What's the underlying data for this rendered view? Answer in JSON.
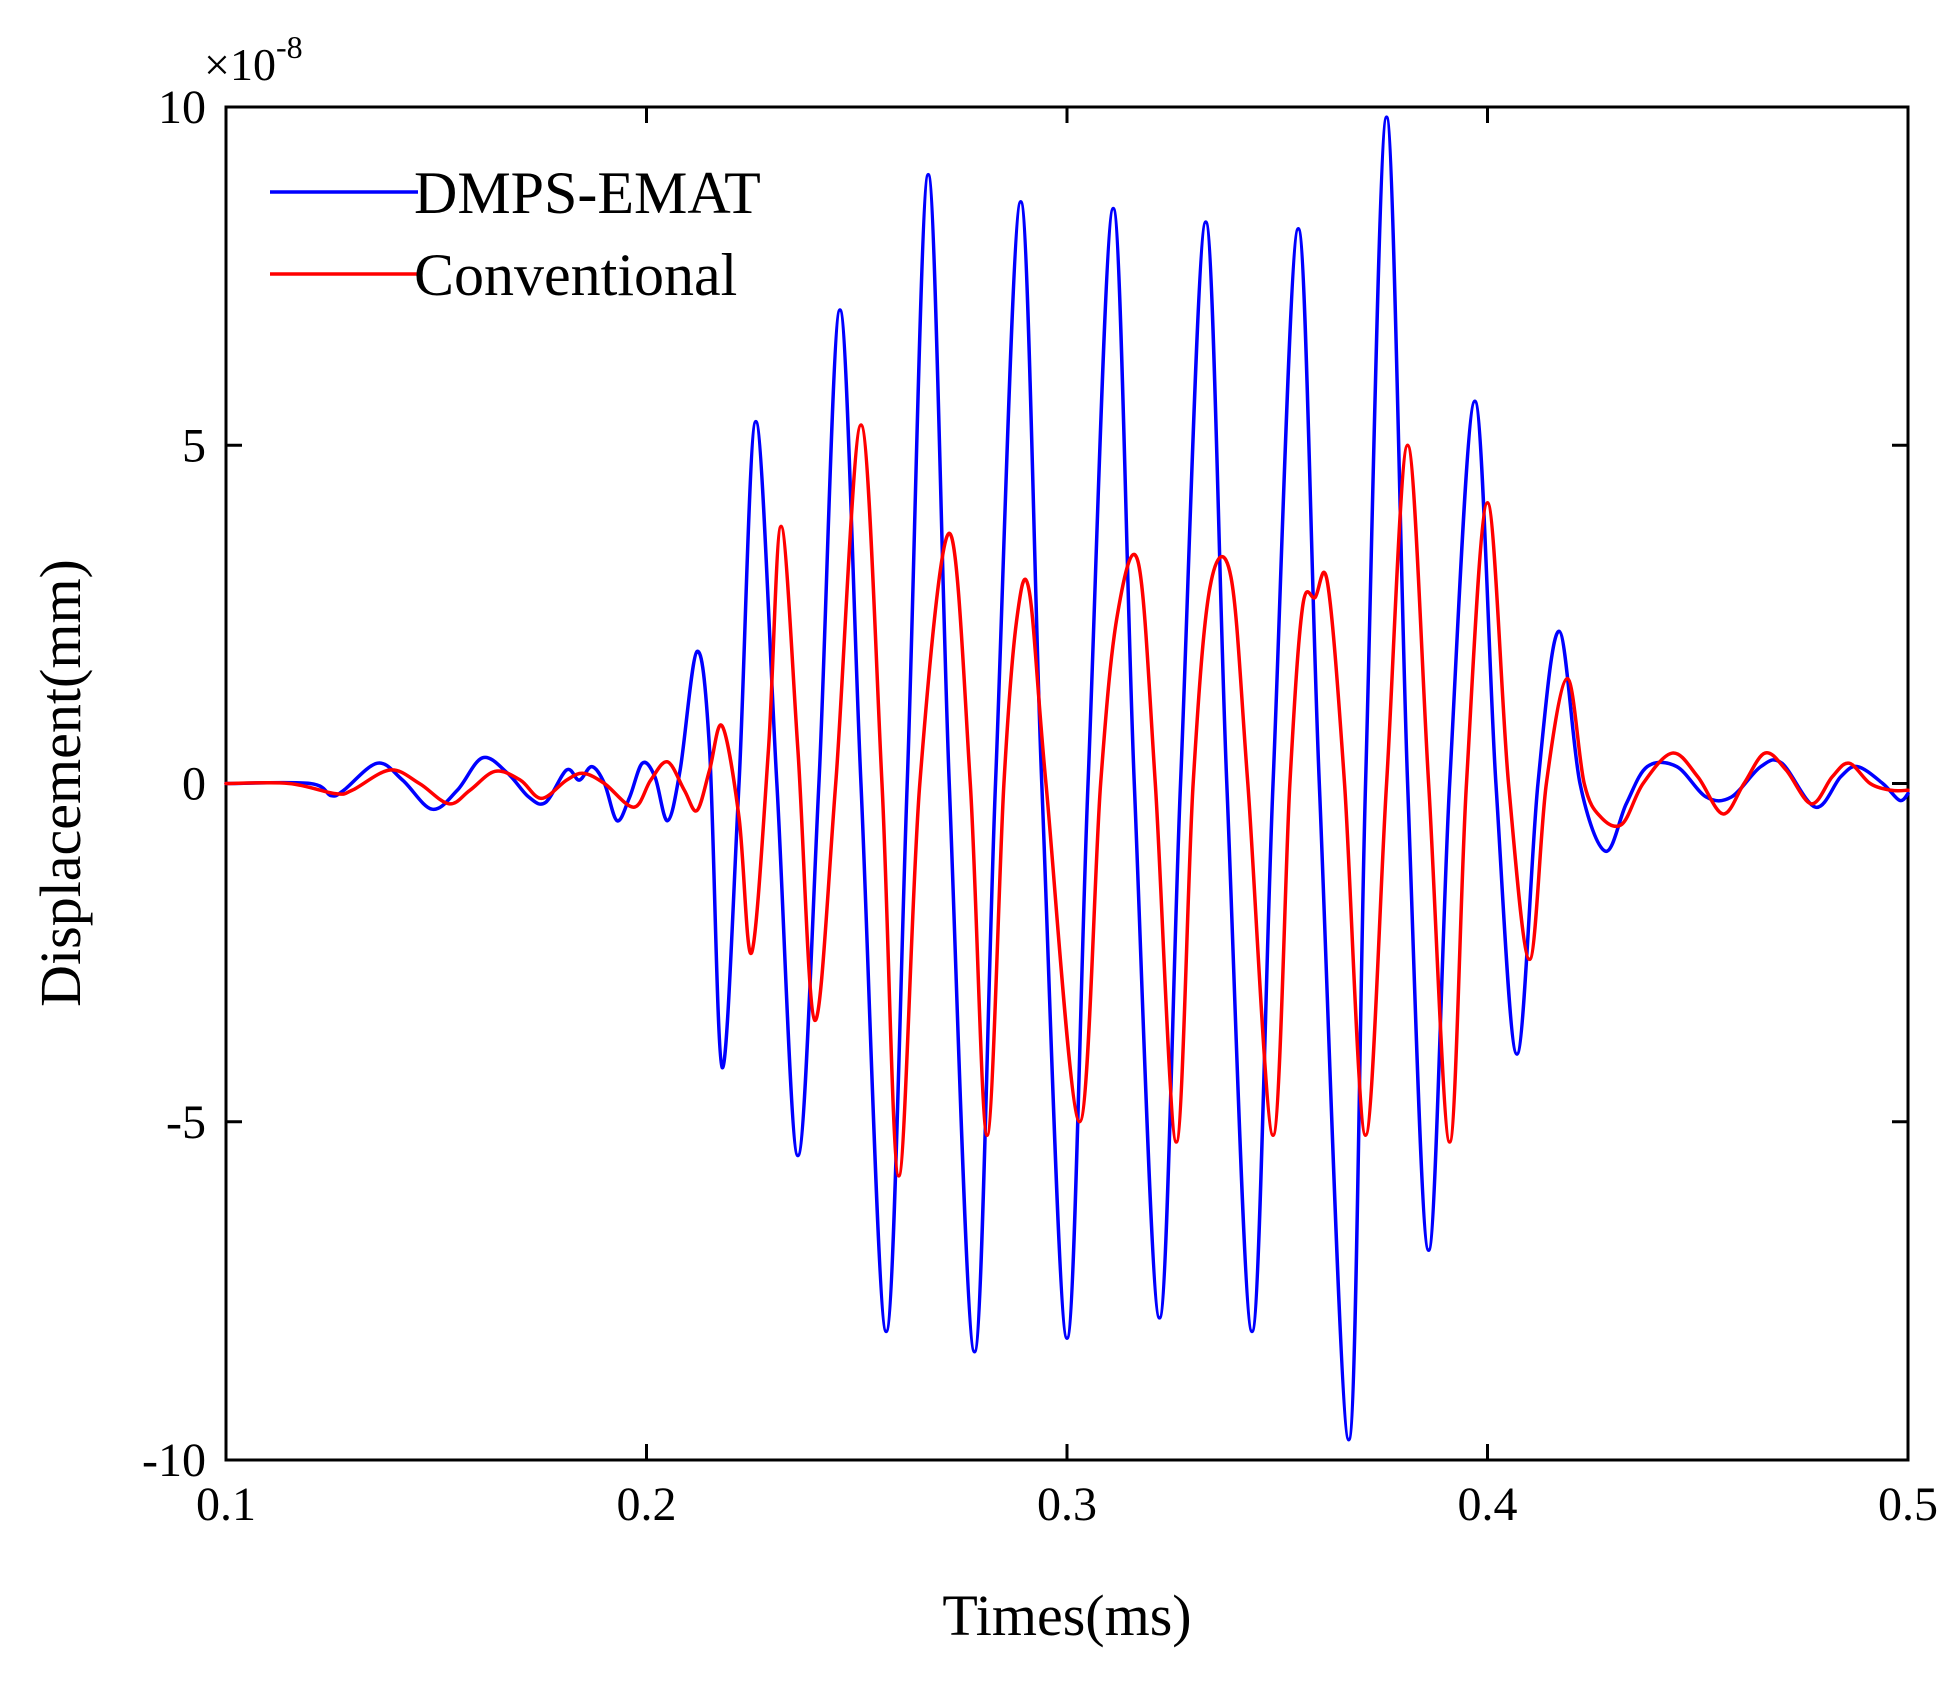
{
  "chart_data": {
    "type": "line",
    "title": "",
    "xlabel": "Times(ms)",
    "ylabel": "Displacement(mm)",
    "y_scale_label": "×10",
    "y_scale_exponent": "-8",
    "xlim": [
      0.1,
      0.5
    ],
    "ylim": [
      -10,
      10
    ],
    "x_ticks": [
      0.1,
      0.2,
      0.3,
      0.4,
      0.5
    ],
    "x_tick_labels": [
      "0.1",
      "0.2",
      "0.3",
      "0.4",
      "0.5"
    ],
    "y_ticks": [
      -10,
      -5,
      0,
      5,
      10
    ],
    "y_tick_labels": [
      "-10",
      "-5",
      "0",
      "5",
      "10"
    ],
    "grid": false,
    "legend_position": "top-left",
    "colors": {
      "axis": "#000000",
      "background": "#ffffff"
    },
    "series": [
      {
        "name": "DMPS-EMAT",
        "color": "#0000ff",
        "points": [
          [
            0.1,
            0
          ],
          [
            0.12,
            0
          ],
          [
            0.125,
            -0.18
          ],
          [
            0.128,
            -0.1
          ],
          [
            0.136,
            0.3
          ],
          [
            0.142,
            0.05
          ],
          [
            0.149,
            -0.38
          ],
          [
            0.155,
            -0.1
          ],
          [
            0.161,
            0.38
          ],
          [
            0.167,
            0.15
          ],
          [
            0.172,
            -0.2
          ],
          [
            0.176,
            -0.28
          ],
          [
            0.181,
            0.2
          ],
          [
            0.184,
            0.05
          ],
          [
            0.187,
            0.25
          ],
          [
            0.19,
            0
          ],
          [
            0.193,
            -0.55
          ],
          [
            0.196,
            -0.2
          ],
          [
            0.199,
            0.3
          ],
          [
            0.202,
            0.1
          ],
          [
            0.205,
            -0.55
          ],
          [
            0.208,
            0.2
          ],
          [
            0.212,
            1.95
          ],
          [
            0.215,
            0.5
          ],
          [
            0.218,
            -4.2
          ],
          [
            0.222,
            0
          ],
          [
            0.226,
            5.35
          ],
          [
            0.231,
            0
          ],
          [
            0.236,
            -5.5
          ],
          [
            0.241,
            0
          ],
          [
            0.246,
            7.0
          ],
          [
            0.251,
            0
          ],
          [
            0.257,
            -8.1
          ],
          [
            0.262,
            0
          ],
          [
            0.267,
            9.0
          ],
          [
            0.272,
            0
          ],
          [
            0.278,
            -8.4
          ],
          [
            0.283,
            0
          ],
          [
            0.289,
            8.6
          ],
          [
            0.294,
            0
          ],
          [
            0.3,
            -8.2
          ],
          [
            0.305,
            0
          ],
          [
            0.311,
            8.5
          ],
          [
            0.316,
            0
          ],
          [
            0.322,
            -7.9
          ],
          [
            0.327,
            0
          ],
          [
            0.333,
            8.3
          ],
          [
            0.338,
            0
          ],
          [
            0.344,
            -8.1
          ],
          [
            0.349,
            0
          ],
          [
            0.355,
            8.2
          ],
          [
            0.36,
            0
          ],
          [
            0.367,
            -9.7
          ],
          [
            0.371,
            0
          ],
          [
            0.376,
            9.85
          ],
          [
            0.381,
            0
          ],
          [
            0.386,
            -6.9
          ],
          [
            0.391,
            0
          ],
          [
            0.397,
            5.65
          ],
          [
            0.402,
            0
          ],
          [
            0.407,
            -4.0
          ],
          [
            0.412,
            0
          ],
          [
            0.417,
            2.25
          ],
          [
            0.422,
            0
          ],
          [
            0.428,
            -1.0
          ],
          [
            0.433,
            -0.3
          ],
          [
            0.438,
            0.25
          ],
          [
            0.445,
            0.25
          ],
          [
            0.452,
            -0.2
          ],
          [
            0.458,
            -0.2
          ],
          [
            0.465,
            0.25
          ],
          [
            0.47,
            0.3
          ],
          [
            0.478,
            -0.35
          ],
          [
            0.484,
            0.1
          ],
          [
            0.488,
            0.25
          ],
          [
            0.494,
            0
          ],
          [
            0.498,
            -0.25
          ],
          [
            0.5,
            -0.15
          ]
        ]
      },
      {
        "name": "Conventional",
        "color": "#ff0000",
        "points": [
          [
            0.1,
            0
          ],
          [
            0.115,
            0
          ],
          [
            0.126,
            -0.15
          ],
          [
            0.13,
            -0.1
          ],
          [
            0.139,
            0.2
          ],
          [
            0.146,
            0
          ],
          [
            0.153,
            -0.3
          ],
          [
            0.158,
            -0.1
          ],
          [
            0.164,
            0.18
          ],
          [
            0.17,
            0.05
          ],
          [
            0.175,
            -0.22
          ],
          [
            0.181,
            0.05
          ],
          [
            0.185,
            0.15
          ],
          [
            0.19,
            0
          ],
          [
            0.197,
            -0.35
          ],
          [
            0.201,
            0.05
          ],
          [
            0.205,
            0.32
          ],
          [
            0.209,
            -0.1
          ],
          [
            0.212,
            -0.4
          ],
          [
            0.215,
            0.2
          ],
          [
            0.218,
            0.85
          ],
          [
            0.222,
            -0.5
          ],
          [
            0.225,
            -2.5
          ],
          [
            0.229,
            0.5
          ],
          [
            0.232,
            3.8
          ],
          [
            0.236,
            0.5
          ],
          [
            0.24,
            -3.5
          ],
          [
            0.245,
            0
          ],
          [
            0.251,
            5.3
          ],
          [
            0.256,
            0
          ],
          [
            0.26,
            -5.8
          ],
          [
            0.265,
            0
          ],
          [
            0.272,
            3.7
          ],
          [
            0.277,
            0
          ],
          [
            0.281,
            -5.2
          ],
          [
            0.285,
            0
          ],
          [
            0.288,
            2.4
          ],
          [
            0.291,
            2.85
          ],
          [
            0.295,
            0
          ],
          [
            0.303,
            -5.0
          ],
          [
            0.308,
            0
          ],
          [
            0.312,
            2.5
          ],
          [
            0.317,
            3.25
          ],
          [
            0.321,
            0
          ],
          [
            0.326,
            -5.3
          ],
          [
            0.33,
            0
          ],
          [
            0.334,
            2.9
          ],
          [
            0.339,
            3.05
          ],
          [
            0.343,
            0
          ],
          [
            0.349,
            -5.2
          ],
          [
            0.353,
            0
          ],
          [
            0.356,
            2.6
          ],
          [
            0.359,
            2.75
          ],
          [
            0.362,
            2.95
          ],
          [
            0.366,
            0
          ],
          [
            0.371,
            -5.2
          ],
          [
            0.376,
            0
          ],
          [
            0.381,
            5.0
          ],
          [
            0.386,
            0
          ],
          [
            0.391,
            -5.3
          ],
          [
            0.395,
            0
          ],
          [
            0.4,
            4.15
          ],
          [
            0.405,
            0
          ],
          [
            0.41,
            -2.6
          ],
          [
            0.414,
            0
          ],
          [
            0.419,
            1.55
          ],
          [
            0.423,
            0
          ],
          [
            0.427,
            -0.5
          ],
          [
            0.432,
            -0.6
          ],
          [
            0.437,
            0
          ],
          [
            0.444,
            0.45
          ],
          [
            0.45,
            0.1
          ],
          [
            0.456,
            -0.45
          ],
          [
            0.461,
            0
          ],
          [
            0.466,
            0.45
          ],
          [
            0.471,
            0.2
          ],
          [
            0.477,
            -0.3
          ],
          [
            0.482,
            0.1
          ],
          [
            0.486,
            0.3
          ],
          [
            0.491,
            0
          ],
          [
            0.496,
            -0.1
          ],
          [
            0.5,
            -0.1
          ]
        ]
      }
    ]
  }
}
